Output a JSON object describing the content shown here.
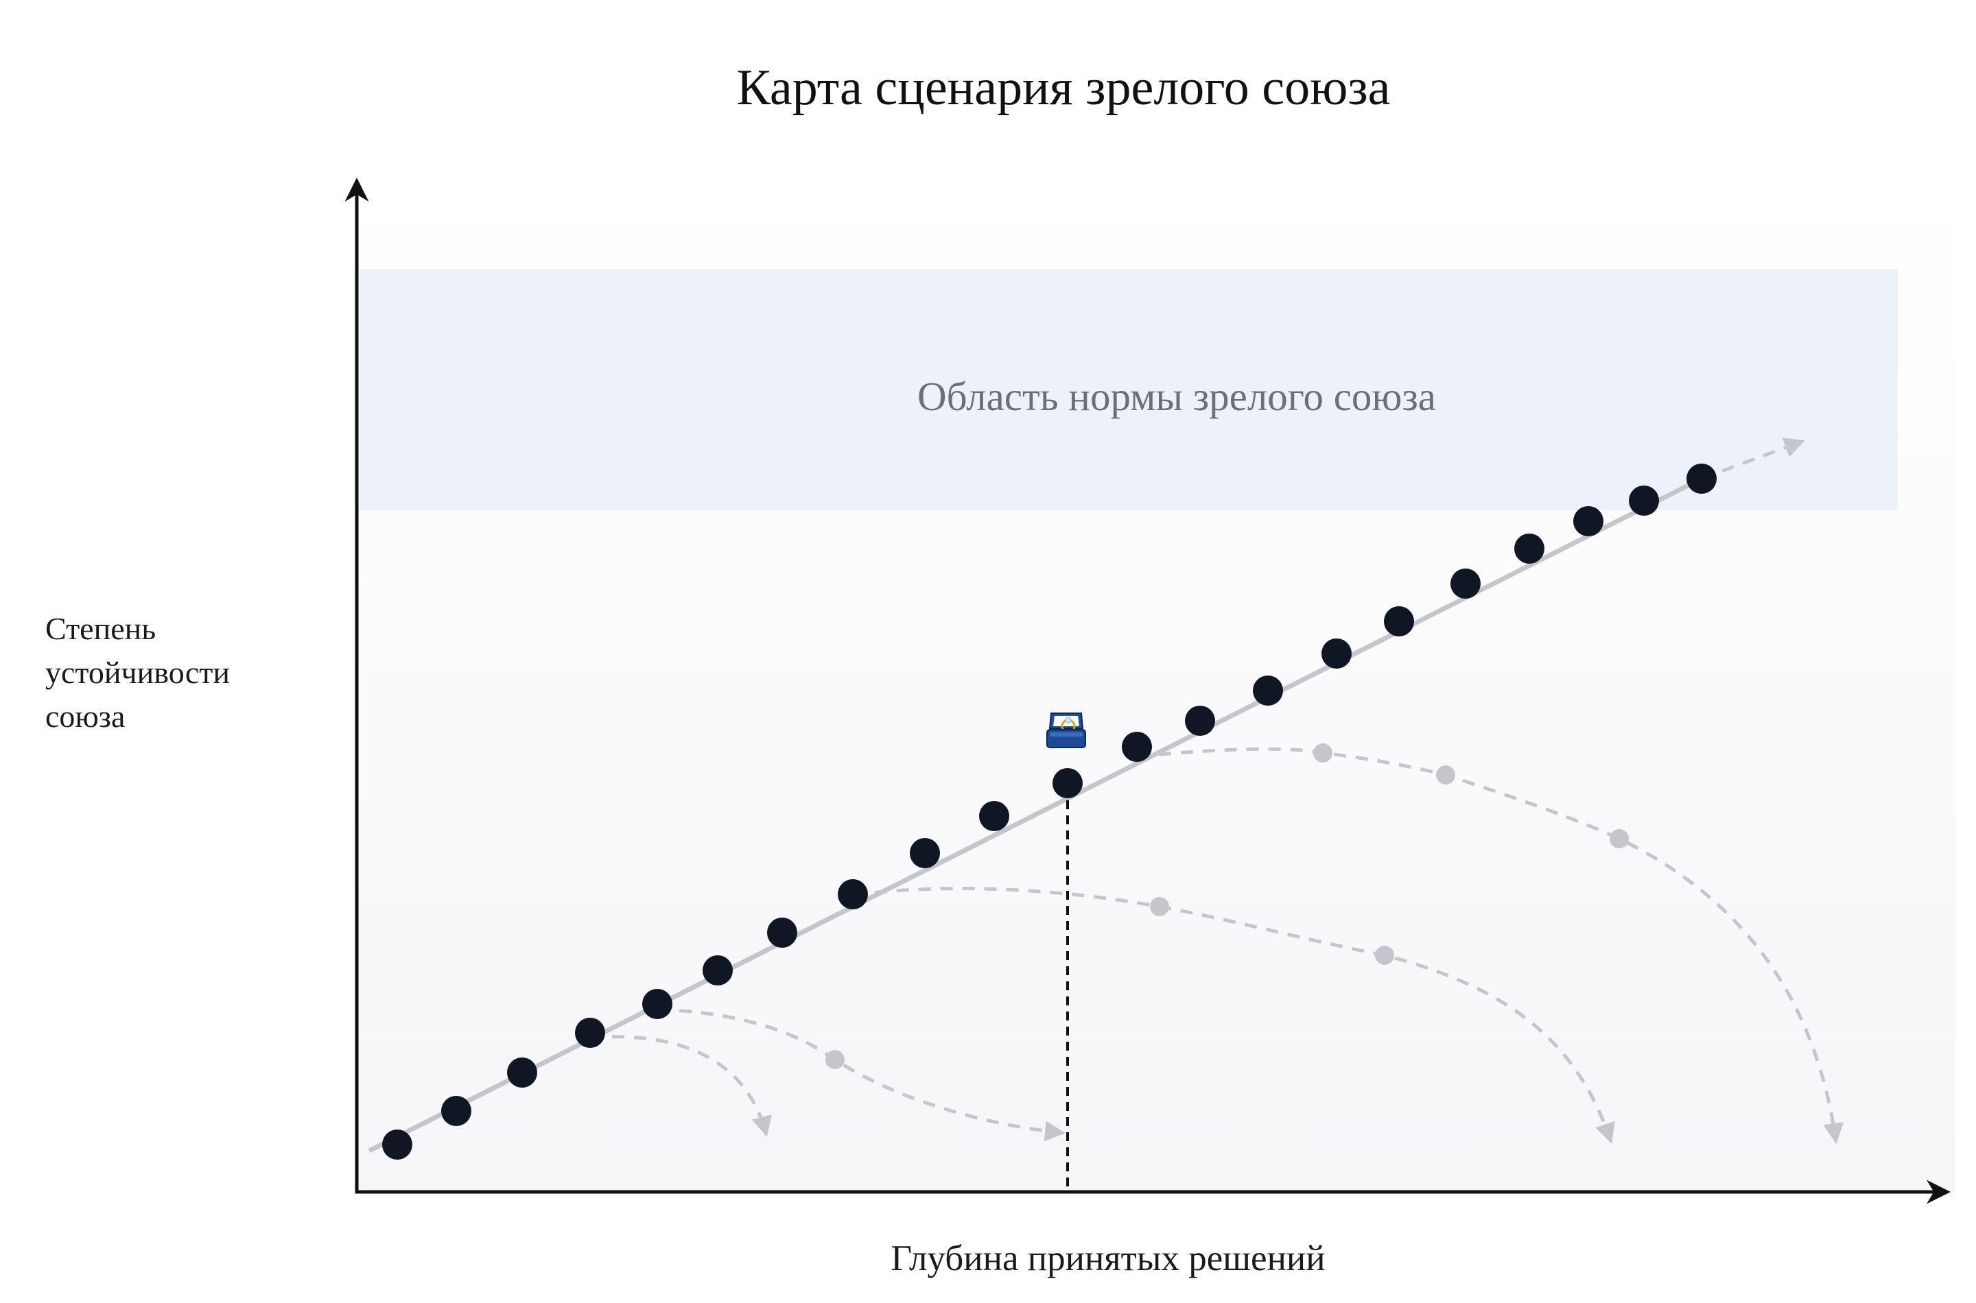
{
  "title": "Карта сценария зрелого союза",
  "y_axis_label_lines": [
    "Степень",
    "устойчивости",
    "союза"
  ],
  "x_axis_label": "Глубина принятых решений",
  "norm_zone_label": "Область нормы зрелого союза",
  "marker_icon": "ring-box-icon",
  "colors": {
    "main_dot": "#0f1725",
    "main_line": "#c4c6cc",
    "branch": "#c4c6cc",
    "zone": "#edf1f8",
    "axis": "#111111"
  }
}
